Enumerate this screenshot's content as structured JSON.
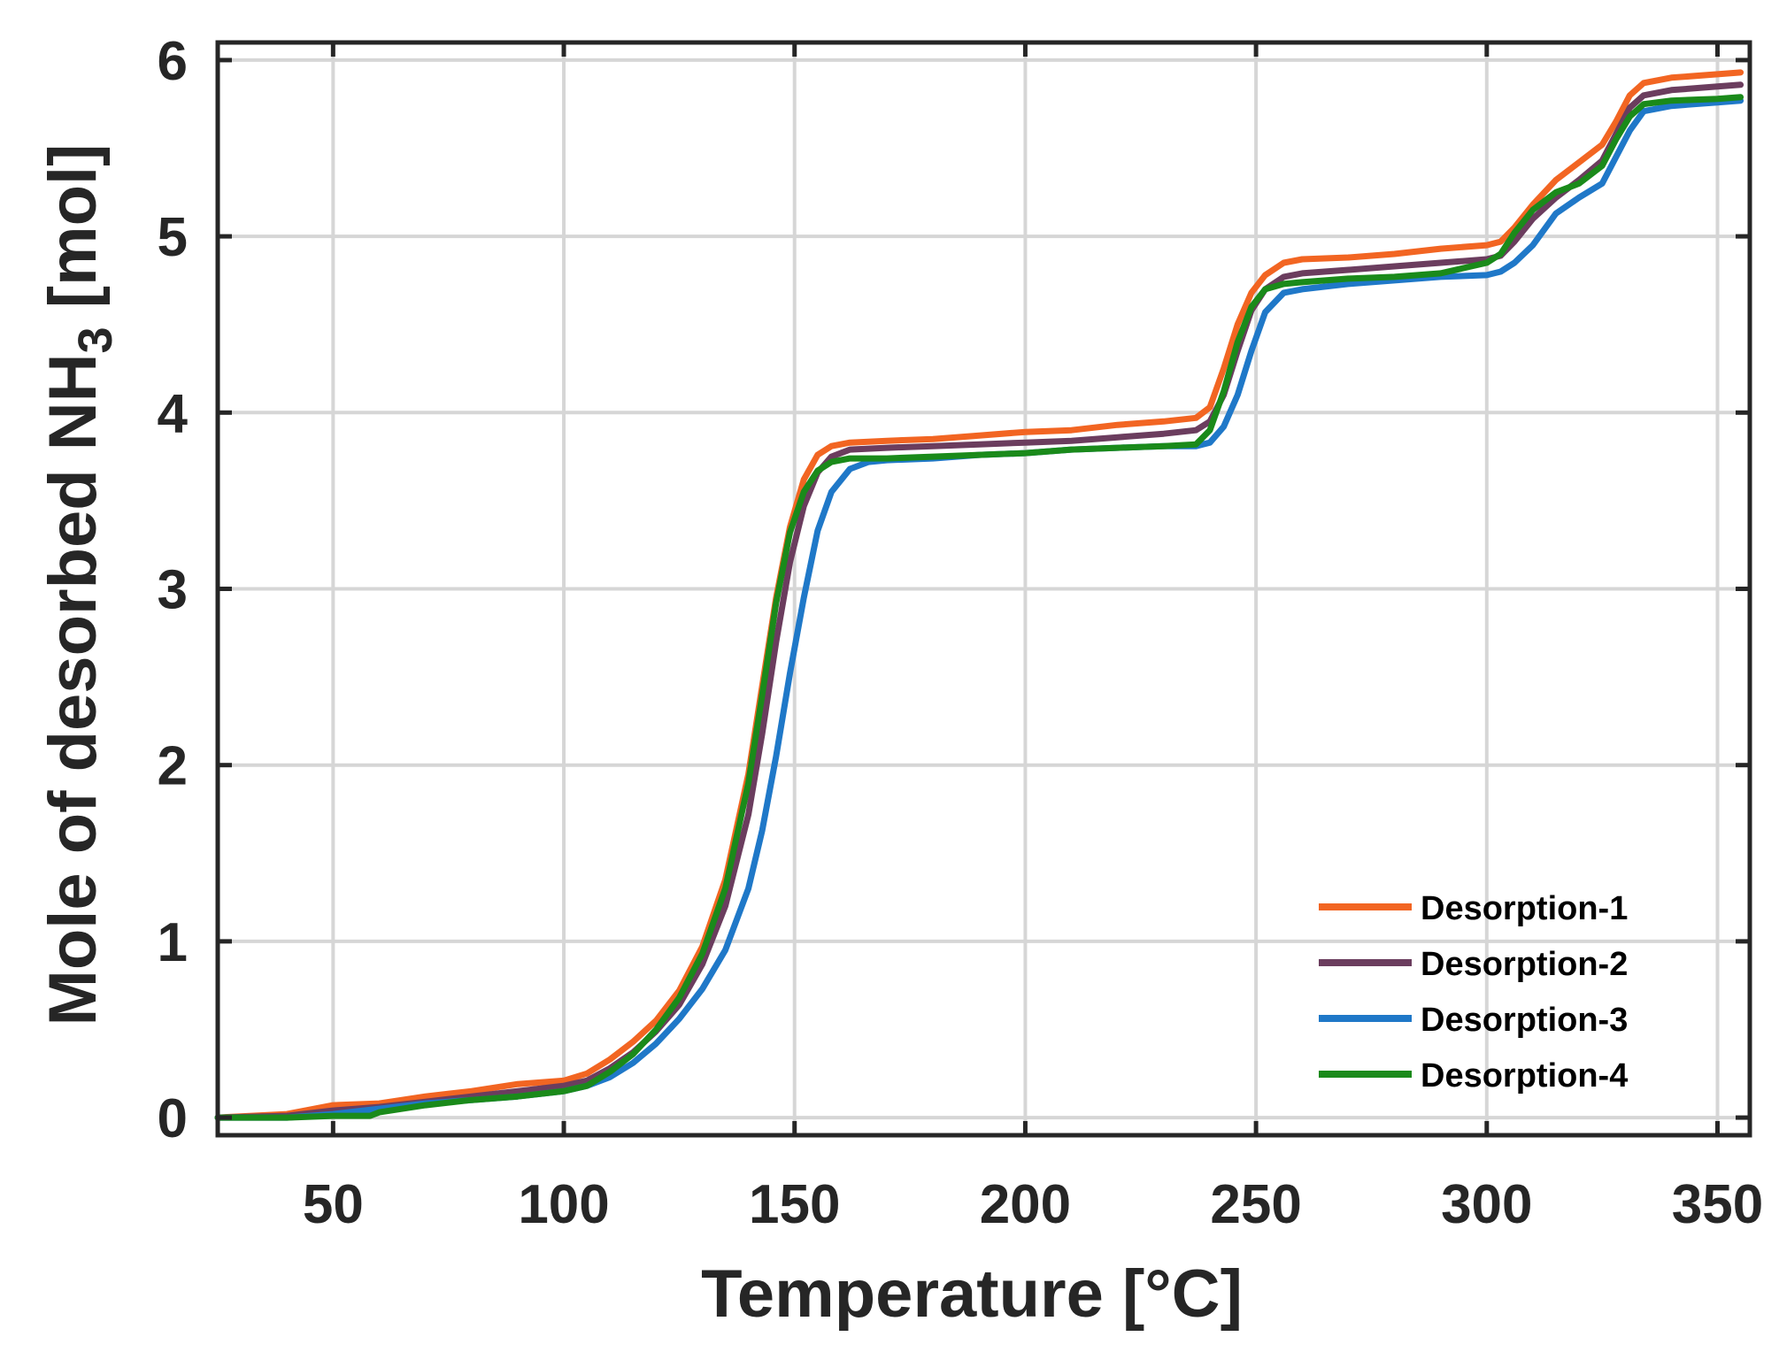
{
  "chart_data": {
    "type": "line",
    "title": "",
    "xlabel": "Temperature [°C]",
    "ylabel_parts": {
      "main": "Mole of desorbed NH",
      "subscript": "3",
      "unit": " [mol]"
    },
    "xlim": [
      25,
      357
    ],
    "ylim": [
      -0.1,
      6.1
    ],
    "xticks": [
      50,
      100,
      150,
      200,
      250,
      300,
      350
    ],
    "xtick_labels": [
      "50",
      "100",
      "150",
      "200",
      "250",
      "300",
      "350"
    ],
    "yticks": [
      0,
      1,
      2,
      3,
      4,
      5,
      6
    ],
    "ytick_labels": [
      "0",
      "1",
      "2",
      "3",
      "4",
      "5",
      "6"
    ],
    "grid": true,
    "legend_position": "bottom-right",
    "series": [
      {
        "name": "Desorption-1",
        "color": "#f26522",
        "points": [
          [
            25,
            0
          ],
          [
            40,
            0.02
          ],
          [
            50,
            0.07
          ],
          [
            60,
            0.08
          ],
          [
            70,
            0.12
          ],
          [
            80,
            0.15
          ],
          [
            90,
            0.19
          ],
          [
            100,
            0.21
          ],
          [
            105,
            0.25
          ],
          [
            110,
            0.33
          ],
          [
            115,
            0.43
          ],
          [
            120,
            0.55
          ],
          [
            125,
            0.72
          ],
          [
            130,
            0.97
          ],
          [
            135,
            1.35
          ],
          [
            140,
            1.95
          ],
          [
            143,
            2.45
          ],
          [
            146,
            2.95
          ],
          [
            149,
            3.35
          ],
          [
            152,
            3.62
          ],
          [
            155,
            3.76
          ],
          [
            158,
            3.81
          ],
          [
            162,
            3.83
          ],
          [
            170,
            3.84
          ],
          [
            180,
            3.85
          ],
          [
            190,
            3.87
          ],
          [
            200,
            3.89
          ],
          [
            210,
            3.9
          ],
          [
            220,
            3.93
          ],
          [
            230,
            3.95
          ],
          [
            237,
            3.97
          ],
          [
            240,
            4.03
          ],
          [
            243,
            4.25
          ],
          [
            246,
            4.5
          ],
          [
            249,
            4.68
          ],
          [
            252,
            4.78
          ],
          [
            256,
            4.85
          ],
          [
            260,
            4.87
          ],
          [
            270,
            4.88
          ],
          [
            280,
            4.9
          ],
          [
            290,
            4.93
          ],
          [
            300,
            4.95
          ],
          [
            303,
            4.97
          ],
          [
            306,
            5.05
          ],
          [
            310,
            5.18
          ],
          [
            315,
            5.32
          ],
          [
            320,
            5.42
          ],
          [
            325,
            5.52
          ],
          [
            328,
            5.65
          ],
          [
            331,
            5.8
          ],
          [
            334,
            5.87
          ],
          [
            340,
            5.9
          ],
          [
            350,
            5.92
          ],
          [
            355,
            5.93
          ]
        ]
      },
      {
        "name": "Desorption-2",
        "color": "#6b3d5e",
        "points": [
          [
            25,
            0
          ],
          [
            40,
            0.01
          ],
          [
            50,
            0.04
          ],
          [
            60,
            0.06
          ],
          [
            70,
            0.09
          ],
          [
            80,
            0.12
          ],
          [
            90,
            0.15
          ],
          [
            100,
            0.18
          ],
          [
            105,
            0.21
          ],
          [
            110,
            0.28
          ],
          [
            115,
            0.37
          ],
          [
            120,
            0.49
          ],
          [
            125,
            0.64
          ],
          [
            130,
            0.87
          ],
          [
            135,
            1.2
          ],
          [
            140,
            1.72
          ],
          [
            143,
            2.18
          ],
          [
            146,
            2.7
          ],
          [
            149,
            3.15
          ],
          [
            152,
            3.47
          ],
          [
            155,
            3.66
          ],
          [
            158,
            3.75
          ],
          [
            162,
            3.79
          ],
          [
            170,
            3.8
          ],
          [
            180,
            3.81
          ],
          [
            190,
            3.82
          ],
          [
            200,
            3.83
          ],
          [
            210,
            3.84
          ],
          [
            220,
            3.86
          ],
          [
            230,
            3.88
          ],
          [
            237,
            3.9
          ],
          [
            240,
            3.95
          ],
          [
            243,
            4.1
          ],
          [
            246,
            4.35
          ],
          [
            249,
            4.58
          ],
          [
            252,
            4.7
          ],
          [
            256,
            4.77
          ],
          [
            260,
            4.79
          ],
          [
            270,
            4.81
          ],
          [
            280,
            4.83
          ],
          [
            290,
            4.85
          ],
          [
            300,
            4.87
          ],
          [
            303,
            4.89
          ],
          [
            306,
            4.97
          ],
          [
            310,
            5.1
          ],
          [
            315,
            5.22
          ],
          [
            320,
            5.32
          ],
          [
            325,
            5.43
          ],
          [
            328,
            5.58
          ],
          [
            331,
            5.73
          ],
          [
            334,
            5.8
          ],
          [
            340,
            5.83
          ],
          [
            350,
            5.85
          ],
          [
            355,
            5.86
          ]
        ]
      },
      {
        "name": "Desorption-3",
        "color": "#1f78c8",
        "points": [
          [
            25,
            0
          ],
          [
            40,
            0.0
          ],
          [
            50,
            0.02
          ],
          [
            60,
            0.05
          ],
          [
            70,
            0.08
          ],
          [
            80,
            0.1
          ],
          [
            90,
            0.12
          ],
          [
            100,
            0.15
          ],
          [
            105,
            0.18
          ],
          [
            110,
            0.23
          ],
          [
            115,
            0.31
          ],
          [
            120,
            0.42
          ],
          [
            125,
            0.56
          ],
          [
            130,
            0.73
          ],
          [
            135,
            0.95
          ],
          [
            140,
            1.3
          ],
          [
            143,
            1.63
          ],
          [
            146,
            2.05
          ],
          [
            149,
            2.52
          ],
          [
            152,
            2.95
          ],
          [
            155,
            3.33
          ],
          [
            158,
            3.55
          ],
          [
            162,
            3.68
          ],
          [
            166,
            3.72
          ],
          [
            170,
            3.73
          ],
          [
            180,
            3.74
          ],
          [
            190,
            3.76
          ],
          [
            200,
            3.77
          ],
          [
            210,
            3.79
          ],
          [
            220,
            3.8
          ],
          [
            230,
            3.81
          ],
          [
            237,
            3.81
          ],
          [
            240,
            3.83
          ],
          [
            243,
            3.92
          ],
          [
            246,
            4.1
          ],
          [
            249,
            4.35
          ],
          [
            252,
            4.57
          ],
          [
            256,
            4.68
          ],
          [
            260,
            4.7
          ],
          [
            270,
            4.73
          ],
          [
            280,
            4.75
          ],
          [
            290,
            4.77
          ],
          [
            300,
            4.78
          ],
          [
            303,
            4.8
          ],
          [
            306,
            4.85
          ],
          [
            310,
            4.95
          ],
          [
            315,
            5.13
          ],
          [
            320,
            5.22
          ],
          [
            325,
            5.3
          ],
          [
            328,
            5.45
          ],
          [
            331,
            5.6
          ],
          [
            334,
            5.71
          ],
          [
            340,
            5.74
          ],
          [
            350,
            5.76
          ],
          [
            355,
            5.77
          ]
        ]
      },
      {
        "name": "Desorption-4",
        "color": "#1a8a1a",
        "points": [
          [
            25,
            0
          ],
          [
            40,
            0.0
          ],
          [
            50,
            0.01
          ],
          [
            58,
            0.01
          ],
          [
            60,
            0.03
          ],
          [
            70,
            0.07
          ],
          [
            80,
            0.1
          ],
          [
            90,
            0.12
          ],
          [
            100,
            0.15
          ],
          [
            105,
            0.18
          ],
          [
            110,
            0.26
          ],
          [
            115,
            0.36
          ],
          [
            120,
            0.5
          ],
          [
            125,
            0.68
          ],
          [
            130,
            0.93
          ],
          [
            135,
            1.3
          ],
          [
            140,
            1.9
          ],
          [
            143,
            2.4
          ],
          [
            146,
            2.92
          ],
          [
            149,
            3.32
          ],
          [
            152,
            3.55
          ],
          [
            155,
            3.67
          ],
          [
            158,
            3.72
          ],
          [
            162,
            3.74
          ],
          [
            170,
            3.74
          ],
          [
            180,
            3.75
          ],
          [
            190,
            3.76
          ],
          [
            200,
            3.77
          ],
          [
            210,
            3.79
          ],
          [
            220,
            3.8
          ],
          [
            230,
            3.81
          ],
          [
            237,
            3.82
          ],
          [
            240,
            3.9
          ],
          [
            243,
            4.12
          ],
          [
            246,
            4.4
          ],
          [
            249,
            4.6
          ],
          [
            252,
            4.7
          ],
          [
            256,
            4.73
          ],
          [
            260,
            4.74
          ],
          [
            270,
            4.76
          ],
          [
            280,
            4.77
          ],
          [
            290,
            4.79
          ],
          [
            300,
            4.85
          ],
          [
            303,
            4.9
          ],
          [
            306,
            5.02
          ],
          [
            310,
            5.15
          ],
          [
            315,
            5.25
          ],
          [
            320,
            5.3
          ],
          [
            325,
            5.4
          ],
          [
            328,
            5.55
          ],
          [
            331,
            5.68
          ],
          [
            334,
            5.75
          ],
          [
            340,
            5.77
          ],
          [
            350,
            5.78
          ],
          [
            355,
            5.79
          ]
        ]
      }
    ]
  }
}
